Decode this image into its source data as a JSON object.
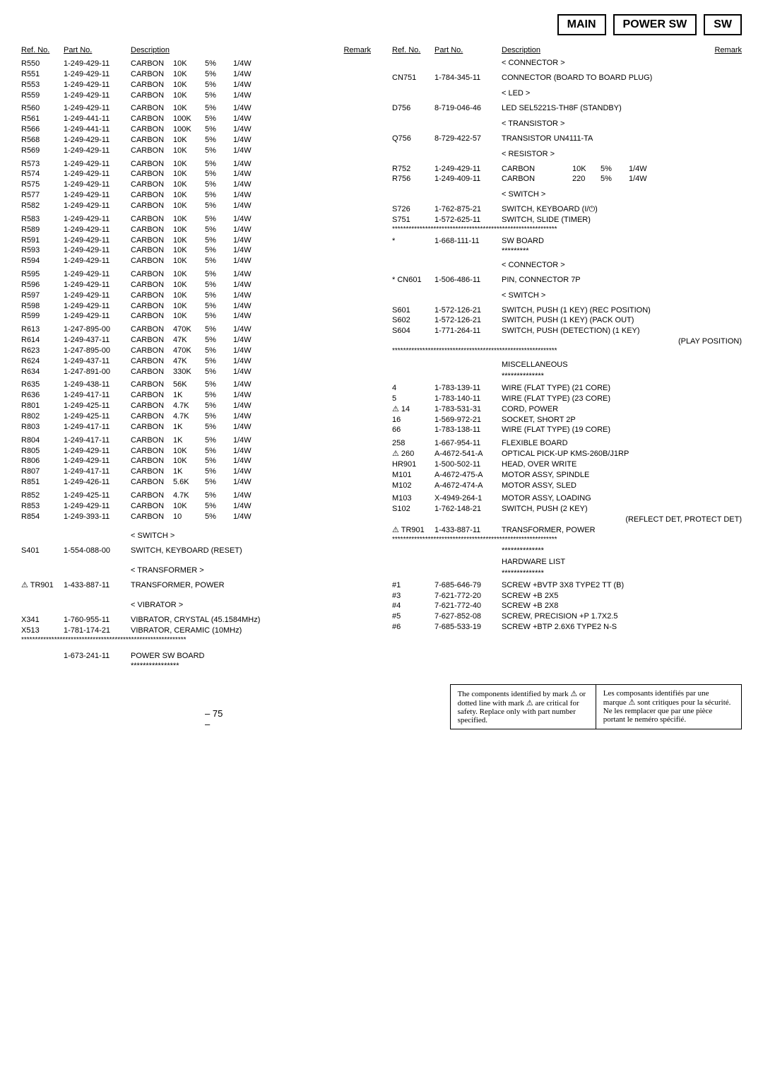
{
  "header_tabs": [
    "MAIN",
    "POWER SW",
    "SW"
  ],
  "col_headers": {
    "ref": "Ref. No.",
    "part": "Part No.",
    "desc": "Description",
    "remark": "Remark"
  },
  "left_rows": [
    [
      "R550",
      "1-249-429-11",
      "CARBON",
      "10K",
      "5%",
      "1/4W"
    ],
    [
      "R551",
      "1-249-429-11",
      "CARBON",
      "10K",
      "5%",
      "1/4W"
    ],
    [
      "R553",
      "1-249-429-11",
      "CARBON",
      "10K",
      "5%",
      "1/4W"
    ],
    [
      "R559",
      "1-249-429-11",
      "CARBON",
      "10K",
      "5%",
      "1/4W"
    ],
    [
      "",
      "",
      "",
      "",
      "",
      ""
    ],
    [
      "R560",
      "1-249-429-11",
      "CARBON",
      "10K",
      "5%",
      "1/4W"
    ],
    [
      "R561",
      "1-249-441-11",
      "CARBON",
      "100K",
      "5%",
      "1/4W"
    ],
    [
      "R566",
      "1-249-441-11",
      "CARBON",
      "100K",
      "5%",
      "1/4W"
    ],
    [
      "R568",
      "1-249-429-11",
      "CARBON",
      "10K",
      "5%",
      "1/4W"
    ],
    [
      "R569",
      "1-249-429-11",
      "CARBON",
      "10K",
      "5%",
      "1/4W"
    ],
    [
      "",
      "",
      "",
      "",
      "",
      ""
    ],
    [
      "R573",
      "1-249-429-11",
      "CARBON",
      "10K",
      "5%",
      "1/4W"
    ],
    [
      "R574",
      "1-249-429-11",
      "CARBON",
      "10K",
      "5%",
      "1/4W"
    ],
    [
      "R575",
      "1-249-429-11",
      "CARBON",
      "10K",
      "5%",
      "1/4W"
    ],
    [
      "R577",
      "1-249-429-11",
      "CARBON",
      "10K",
      "5%",
      "1/4W"
    ],
    [
      "R582",
      "1-249-429-11",
      "CARBON",
      "10K",
      "5%",
      "1/4W"
    ],
    [
      "",
      "",
      "",
      "",
      "",
      ""
    ],
    [
      "R583",
      "1-249-429-11",
      "CARBON",
      "10K",
      "5%",
      "1/4W"
    ],
    [
      "R589",
      "1-249-429-11",
      "CARBON",
      "10K",
      "5%",
      "1/4W"
    ],
    [
      "R591",
      "1-249-429-11",
      "CARBON",
      "10K",
      "5%",
      "1/4W"
    ],
    [
      "R593",
      "1-249-429-11",
      "CARBON",
      "10K",
      "5%",
      "1/4W"
    ],
    [
      "R594",
      "1-249-429-11",
      "CARBON",
      "10K",
      "5%",
      "1/4W"
    ],
    [
      "",
      "",
      "",
      "",
      "",
      ""
    ],
    [
      "R595",
      "1-249-429-11",
      "CARBON",
      "10K",
      "5%",
      "1/4W"
    ],
    [
      "R596",
      "1-249-429-11",
      "CARBON",
      "10K",
      "5%",
      "1/4W"
    ],
    [
      "R597",
      "1-249-429-11",
      "CARBON",
      "10K",
      "5%",
      "1/4W"
    ],
    [
      "R598",
      "1-249-429-11",
      "CARBON",
      "10K",
      "5%",
      "1/4W"
    ],
    [
      "R599",
      "1-249-429-11",
      "CARBON",
      "10K",
      "5%",
      "1/4W"
    ],
    [
      "",
      "",
      "",
      "",
      "",
      ""
    ],
    [
      "R613",
      "1-247-895-00",
      "CARBON",
      "470K",
      "5%",
      "1/4W"
    ],
    [
      "R614",
      "1-249-437-11",
      "CARBON",
      "47K",
      "5%",
      "1/4W"
    ],
    [
      "R623",
      "1-247-895-00",
      "CARBON",
      "470K",
      "5%",
      "1/4W"
    ],
    [
      "R624",
      "1-249-437-11",
      "CARBON",
      "47K",
      "5%",
      "1/4W"
    ],
    [
      "R634",
      "1-247-891-00",
      "CARBON",
      "330K",
      "5%",
      "1/4W"
    ],
    [
      "",
      "",
      "",
      "",
      "",
      ""
    ],
    [
      "R635",
      "1-249-438-11",
      "CARBON",
      "56K",
      "5%",
      "1/4W"
    ],
    [
      "R636",
      "1-249-417-11",
      "CARBON",
      "1K",
      "5%",
      "1/4W"
    ],
    [
      "R801",
      "1-249-425-11",
      "CARBON",
      "4.7K",
      "5%",
      "1/4W"
    ],
    [
      "R802",
      "1-249-425-11",
      "CARBON",
      "4.7K",
      "5%",
      "1/4W"
    ],
    [
      "R803",
      "1-249-417-11",
      "CARBON",
      "1K",
      "5%",
      "1/4W"
    ],
    [
      "",
      "",
      "",
      "",
      "",
      ""
    ],
    [
      "R804",
      "1-249-417-11",
      "CARBON",
      "1K",
      "5%",
      "1/4W"
    ],
    [
      "R805",
      "1-249-429-11",
      "CARBON",
      "10K",
      "5%",
      "1/4W"
    ],
    [
      "R806",
      "1-249-429-11",
      "CARBON",
      "10K",
      "5%",
      "1/4W"
    ],
    [
      "R807",
      "1-249-417-11",
      "CARBON",
      "1K",
      "5%",
      "1/4W"
    ],
    [
      "R851",
      "1-249-426-11",
      "CARBON",
      "5.6K",
      "5%",
      "1/4W"
    ],
    [
      "",
      "",
      "",
      "",
      "",
      ""
    ],
    [
      "R852",
      "1-249-425-11",
      "CARBON",
      "4.7K",
      "5%",
      "1/4W"
    ],
    [
      "R853",
      "1-249-429-11",
      "CARBON",
      "10K",
      "5%",
      "1/4W"
    ],
    [
      "R854",
      "1-249-393-11",
      "CARBON",
      "10",
      "5%",
      "1/4W"
    ]
  ],
  "left_switch_label": "< SWITCH >",
  "left_s401": [
    "S401",
    "1-554-088-00",
    "SWITCH, KEYBOARD (RESET)"
  ],
  "left_transformer_label": "< TRANSFORMER >",
  "left_tr901": [
    "⚠ TR901",
    "1-433-887-11",
    "TRANSFORMER, POWER"
  ],
  "left_vibrator_label": "< VIBRATOR >",
  "left_x341": [
    "X341",
    "1-760-955-11",
    "VIBRATOR, CRYSTAL (45.1584MHz)"
  ],
  "left_x513": [
    "X513",
    "1-781-174-21",
    "VIBRATOR, CERAMIC (10MHz)"
  ],
  "left_powersw": [
    "",
    "1-673-241-11",
    "POWER SW BOARD"
  ],
  "left_powersw_stars": "****************",
  "right_connector_label": "< CONNECTOR >",
  "right_cn751": [
    "CN751",
    "1-784-345-11",
    "CONNECTOR (BOARD TO BOARD PLUG)"
  ],
  "right_led_label": "< LED >",
  "right_d756": [
    "D756",
    "8-719-046-46",
    "LED   SEL5221S-TH8F (STANDBY)"
  ],
  "right_transistor_label": "< TRANSISTOR >",
  "right_q756": [
    "Q756",
    "8-729-422-57",
    "TRANSISTOR   UN4111-TA"
  ],
  "right_resistor_label": "< RESISTOR >",
  "right_r752": [
    "R752",
    "1-249-429-11",
    "CARBON",
    "10K",
    "5%",
    "1/4W"
  ],
  "right_r756": [
    "R756",
    "1-249-409-11",
    "CARBON",
    "220",
    "5%",
    "1/4W"
  ],
  "right_switch_label": "< SWITCH >",
  "right_s726": [
    "S726",
    "1-762-875-21",
    "SWITCH, KEYBOARD (I/⏻)"
  ],
  "right_s751": [
    "S751",
    "1-572-625-11",
    "SWITCH, SLIDE (TIMER)"
  ],
  "right_swboard": [
    "*",
    "1-668-111-11",
    "SW BOARD"
  ],
  "right_swboard_stars": "*********",
  "right_connector2_label": "< CONNECTOR >",
  "right_cn601": [
    "* CN601",
    "1-506-486-11",
    "PIN, CONNECTOR 7P"
  ],
  "right_switch2_label": "< SWITCH >",
  "right_s601": [
    "S601",
    "1-572-126-21",
    "SWITCH, PUSH (1 KEY) (REC POSITION)"
  ],
  "right_s602": [
    "S602",
    "1-572-126-21",
    "SWITCH, PUSH (1 KEY) (PACK OUT)"
  ],
  "right_s604": [
    "S604",
    "1-771-264-11",
    "SWITCH, PUSH (DETECTION) (1 KEY)"
  ],
  "right_play_position": "(PLAY POSITION)",
  "right_misc_label": "MISCELLANEOUS",
  "right_misc_stars": "**************",
  "right_misc_rows": [
    [
      "4",
      "1-783-139-11",
      "WIRE (FLAT TYPE) (21 CORE)"
    ],
    [
      "5",
      "1-783-140-11",
      "WIRE (FLAT TYPE) (23 CORE)"
    ],
    [
      "⚠ 14",
      "1-783-531-31",
      "CORD, POWER"
    ],
    [
      "16",
      "1-569-972-21",
      "SOCKET, SHORT 2P"
    ],
    [
      "66",
      "1-783-138-11",
      "WIRE (FLAT TYPE) (19 CORE)"
    ],
    [
      "",
      "",
      ""
    ],
    [
      "258",
      "1-667-954-11",
      "FLEXIBLE BOARD"
    ],
    [
      "⚠ 260",
      "A-4672-541-A",
      "OPTICAL PICK-UP KMS-260B/J1RP"
    ],
    [
      "HR901",
      "1-500-502-11",
      "HEAD, OVER WRITE"
    ],
    [
      "M101",
      "A-4672-475-A",
      "MOTOR ASSY, SPINDLE"
    ],
    [
      "M102",
      "A-4672-474-A",
      "MOTOR ASSY, SLED"
    ],
    [
      "",
      "",
      ""
    ],
    [
      "M103",
      "X-4949-264-1",
      "MOTOR ASSY, LOADING"
    ],
    [
      "S102",
      "1-762-148-21",
      "SWITCH, PUSH (2 KEY)"
    ]
  ],
  "right_reflect": "(REFLECT DET, PROTECT DET)",
  "right_tr901_2": [
    "⚠ TR901",
    "1-433-887-11",
    "TRANSFORMER, POWER"
  ],
  "right_hw_stars1": "**************",
  "right_hw_label": "HARDWARE LIST",
  "right_hw_stars2": "**************",
  "right_hw_rows": [
    [
      "#1",
      "7-685-646-79",
      "SCREW +BVTP 3X8 TYPE2 TT (B)"
    ],
    [
      "#3",
      "7-621-772-20",
      "SCREW +B 2X5"
    ],
    [
      "#4",
      "7-621-772-40",
      "SCREW +B 2X8"
    ],
    [
      "#5",
      "7-627-852-08",
      "SCREW, PRECISION +P 1.7X2.5"
    ],
    [
      "#6",
      "7-685-533-19",
      "SCREW +BTP 2.6X6 TYPE2 N-S"
    ]
  ],
  "footer_en": "The components identified by mark ⚠ or dotted line with mark ⚠ are critical for safety. Replace only with part number specified.",
  "footer_fr": "Les composants identifiés par une marque ⚠ sont critiques pour la sécurité.\nNe les remplacer que par une pièce portant le neméro spécifié.",
  "page_number": "– 75 –",
  "long_stars": "************************************************************"
}
